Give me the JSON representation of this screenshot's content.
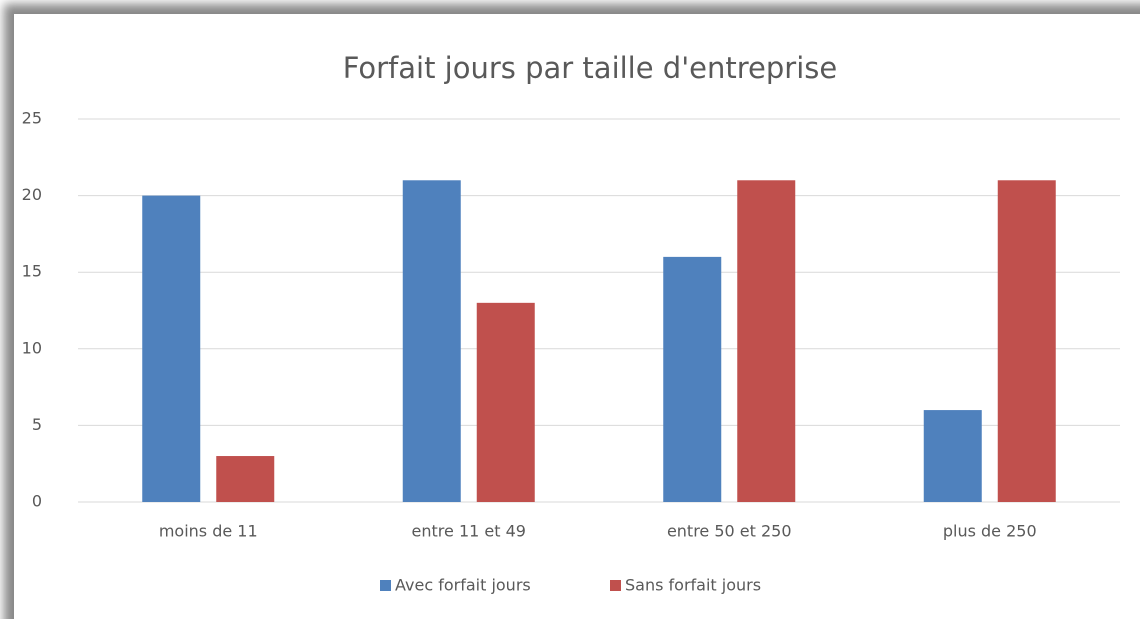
{
  "chart_data": {
    "type": "bar",
    "title": "Forfait jours par taille d'entreprise",
    "categories": [
      "moins de 11",
      "entre 11 et 49",
      "entre 50 et 250",
      "plus de 250"
    ],
    "series": [
      {
        "name": "Avec forfait jours",
        "color": "#4f81bd",
        "values": [
          20,
          21,
          16,
          6
        ]
      },
      {
        "name": "Sans forfait jours",
        "color": "#c0504d",
        "values": [
          3,
          13,
          21,
          21
        ]
      }
    ],
    "ylim": [
      0,
      25
    ],
    "yticks": [
      0,
      5,
      10,
      15,
      20,
      25
    ],
    "grid": true,
    "legend": "bottom"
  }
}
